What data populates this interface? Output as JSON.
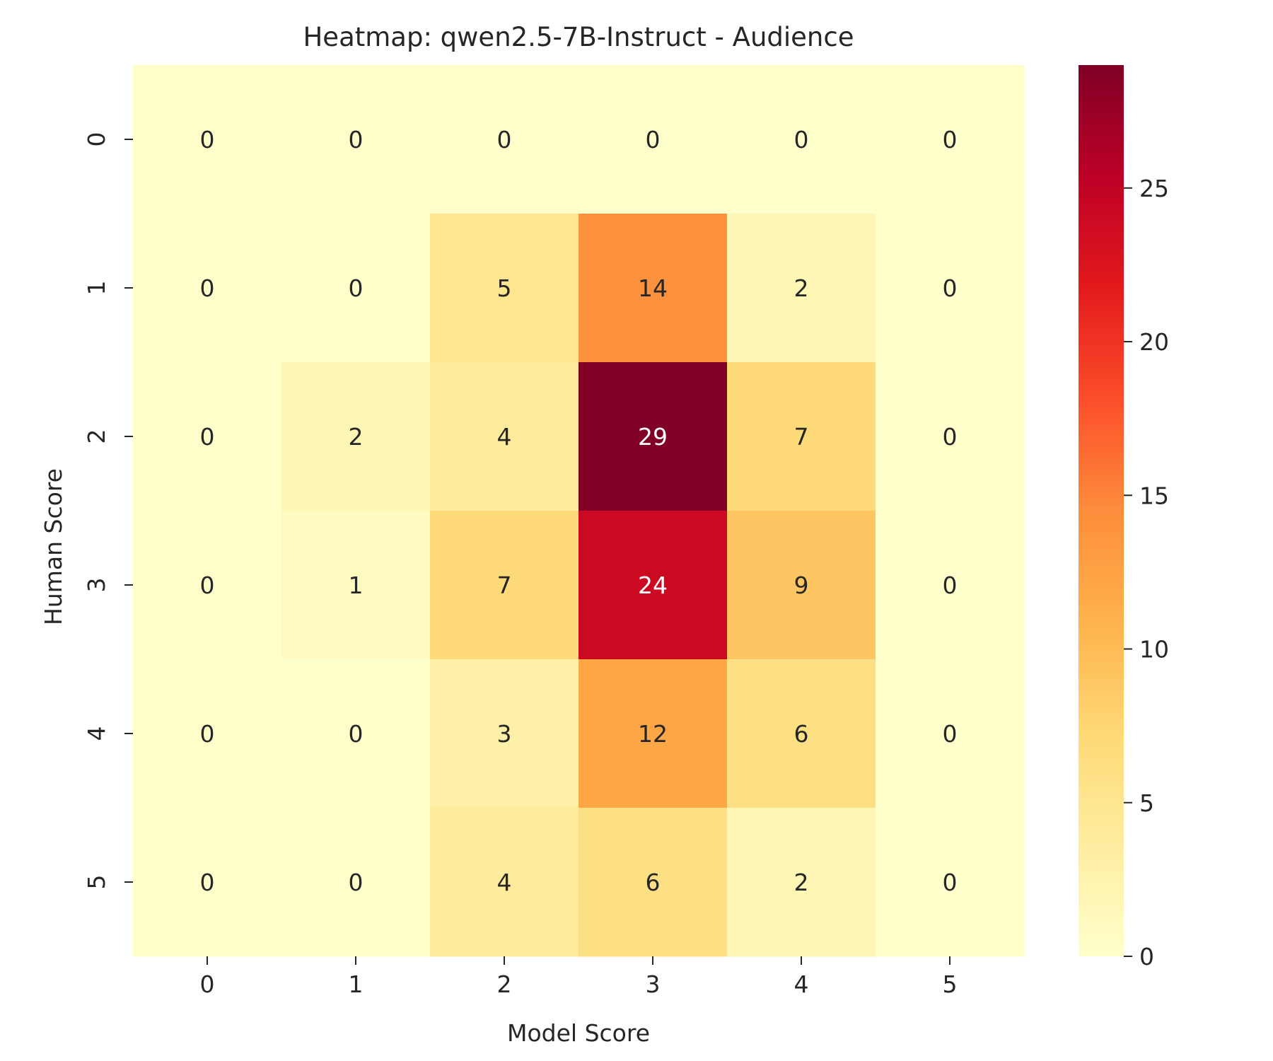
{
  "chart_data": {
    "type": "heatmap",
    "title": "Heatmap: qwen2.5-7B-Instruct - Audience",
    "xlabel": "Model Score",
    "ylabel": "Human Score",
    "x_categories": [
      "0",
      "1",
      "2",
      "3",
      "4",
      "5"
    ],
    "y_categories": [
      "0",
      "1",
      "2",
      "3",
      "4",
      "5"
    ],
    "values": [
      [
        0,
        0,
        0,
        0,
        0,
        0
      ],
      [
        0,
        0,
        5,
        14,
        2,
        0
      ],
      [
        0,
        2,
        4,
        29,
        7,
        0
      ],
      [
        0,
        1,
        7,
        24,
        9,
        0
      ],
      [
        0,
        0,
        3,
        12,
        6,
        0
      ],
      [
        0,
        0,
        4,
        6,
        2,
        0
      ]
    ],
    "colormap": "YlOrRd",
    "colorbar": {
      "range": [
        0,
        29
      ],
      "ticks": [
        0,
        5,
        10,
        15,
        20,
        25
      ]
    },
    "annotations": true,
    "grid": false
  }
}
